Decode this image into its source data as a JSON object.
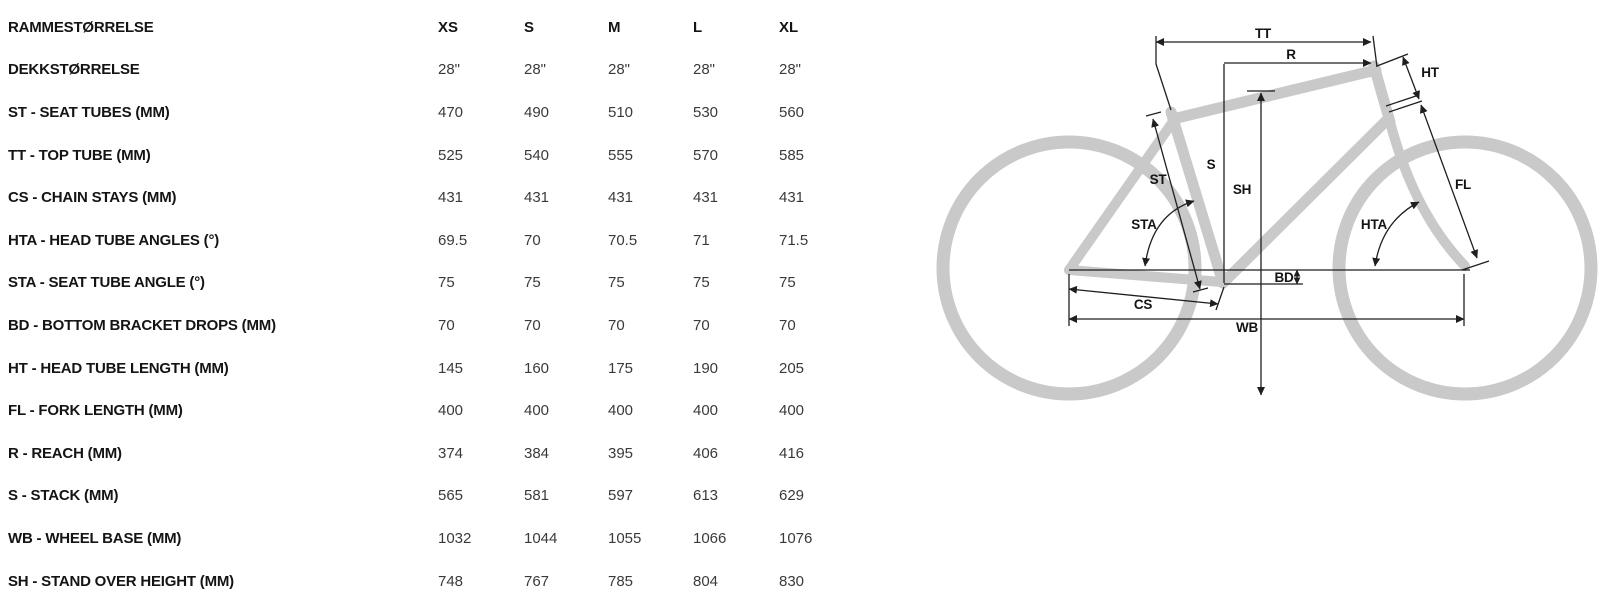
{
  "table": {
    "rows": [
      {
        "label": "RAMMESTØRRELSE",
        "values": [
          "XS",
          "S",
          "M",
          "L",
          "XL"
        ],
        "header": true
      },
      {
        "label": "DEKKSTØRRELSE",
        "values": [
          "28\"",
          "28\"",
          "28\"",
          "28\"",
          "28\""
        ]
      },
      {
        "label": "ST - SEAT TUBES (MM)",
        "values": [
          "470",
          "490",
          "510",
          "530",
          "560"
        ]
      },
      {
        "label": "TT - TOP TUBE (MM)",
        "values": [
          "525",
          "540",
          "555",
          "570",
          "585"
        ]
      },
      {
        "label": "CS - CHAIN STAYS (MM)",
        "values": [
          "431",
          "431",
          "431",
          "431",
          "431"
        ]
      },
      {
        "label": "HTA - HEAD TUBE ANGLES (°)",
        "values": [
          "69.5",
          "70",
          "70.5",
          "71",
          "71.5"
        ]
      },
      {
        "label": "STA - SEAT TUBE ANGLE (°)",
        "values": [
          "75",
          "75",
          "75",
          "75",
          "75"
        ]
      },
      {
        "label": "BD - BOTTOM BRACKET DROPS (MM)",
        "values": [
          "70",
          "70",
          "70",
          "70",
          "70"
        ]
      },
      {
        "label": "HT - HEAD TUBE LENGTH (MM)",
        "values": [
          "145",
          "160",
          "175",
          "190",
          "205"
        ]
      },
      {
        "label": "FL - FORK LENGTH (MM)",
        "values": [
          "400",
          "400",
          "400",
          "400",
          "400"
        ]
      },
      {
        "label": "R - REACH (MM)",
        "values": [
          "374",
          "384",
          "395",
          "406",
          "416"
        ]
      },
      {
        "label": "S - STACK (MM)",
        "values": [
          "565",
          "581",
          "597",
          "613",
          "629"
        ]
      },
      {
        "label": "WB - WHEEL BASE (MM)",
        "values": [
          "1032",
          "1044",
          "1055",
          "1066",
          "1076"
        ]
      },
      {
        "label": "SH - STAND OVER HEIGHT (MM)",
        "values": [
          "748",
          "767",
          "785",
          "804",
          "830"
        ]
      }
    ]
  },
  "diagram": {
    "labels": {
      "tt": "TT",
      "r": "R",
      "ht": "HT",
      "s": "S",
      "sh": "SH",
      "st": "ST",
      "fl": "FL",
      "sta": "STA",
      "hta": "HTA",
      "bd": "BD",
      "cs": "CS",
      "wb": "WB"
    },
    "colors": {
      "frame": "#c9c9c9",
      "dimension": "#1f1f1f",
      "label": "#141414",
      "value_text": "#3a3a3a"
    }
  }
}
